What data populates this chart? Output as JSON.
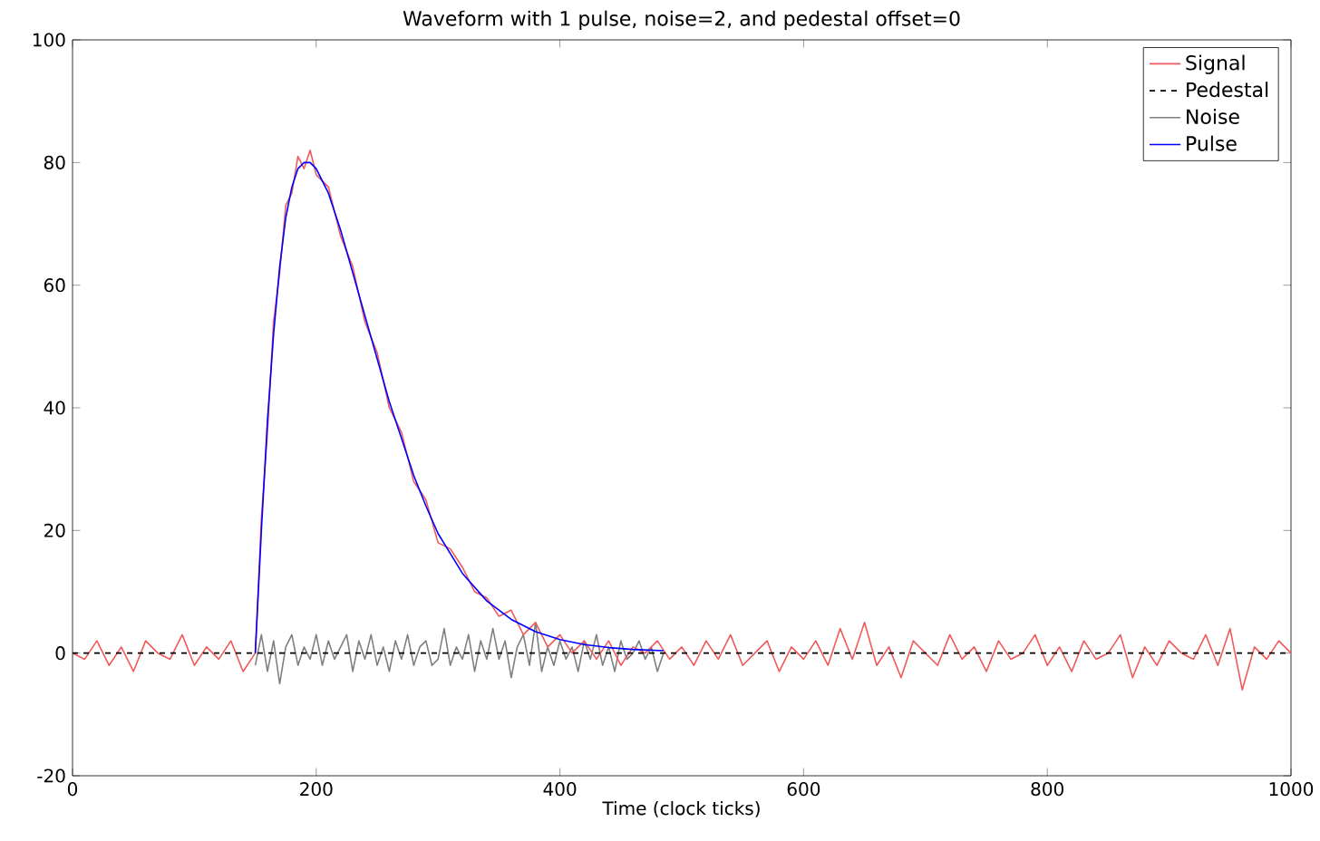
{
  "chart_data": {
    "type": "line",
    "title": "Waveform with 1 pulse, noise=2, and pedestal offset=0",
    "xlabel": "Time (clock ticks)",
    "xlim": [
      0,
      1000
    ],
    "ylim": [
      -20,
      100
    ],
    "xticks": [
      0,
      200,
      400,
      600,
      800,
      1000
    ],
    "yticks": [
      -20,
      0,
      20,
      40,
      60,
      80,
      100
    ],
    "grid": false,
    "legend": "top right",
    "series": [
      {
        "name": "Signal",
        "color": "#f05a5a",
        "line_style": "solid",
        "x": [
          0,
          10,
          20,
          30,
          40,
          50,
          60,
          70,
          80,
          90,
          100,
          110,
          120,
          130,
          140,
          150,
          155,
          160,
          165,
          170,
          175,
          180,
          185,
          190,
          195,
          200,
          210,
          220,
          230,
          240,
          250,
          260,
          270,
          280,
          290,
          300,
          310,
          320,
          330,
          340,
          350,
          360,
          370,
          380,
          390,
          400,
          410,
          420,
          430,
          440,
          450,
          460,
          470,
          480,
          490,
          500,
          510,
          520,
          530,
          540,
          550,
          560,
          570,
          580,
          590,
          600,
          610,
          620,
          630,
          640,
          650,
          660,
          670,
          680,
          690,
          700,
          710,
          720,
          730,
          740,
          750,
          760,
          770,
          780,
          790,
          800,
          810,
          820,
          830,
          840,
          850,
          860,
          870,
          880,
          890,
          900,
          910,
          920,
          930,
          940,
          950,
          960,
          970,
          980,
          990,
          1000
        ],
        "values": [
          0,
          -1,
          2,
          -2,
          1,
          -3,
          2,
          0,
          -1,
          3,
          -2,
          1,
          -1,
          2,
          -3,
          0,
          22,
          36,
          54,
          62,
          73,
          75,
          81,
          79,
          82,
          78,
          76,
          68,
          63,
          54,
          49,
          40,
          36,
          28,
          25,
          18,
          17,
          14,
          10,
          9,
          6,
          7,
          3,
          5,
          1,
          3,
          0,
          2,
          -1,
          2,
          -2,
          1,
          0,
          2,
          -1,
          1,
          -2,
          2,
          -1,
          3,
          -2,
          0,
          2,
          -3,
          1,
          -1,
          2,
          -2,
          4,
          -1,
          5,
          -2,
          1,
          -4,
          2,
          0,
          -2,
          3,
          -1,
          1,
          -3,
          2,
          -1,
          0,
          3,
          -2,
          1,
          -3,
          2,
          -1,
          0,
          3,
          -4,
          1,
          -2,
          2,
          0,
          -1,
          3,
          -2,
          4,
          -6,
          1,
          -1,
          2,
          0
        ]
      },
      {
        "name": "Pedestal",
        "color": "#000000",
        "line_style": "dashed",
        "x": [
          0,
          1000
        ],
        "values": [
          0,
          0
        ]
      },
      {
        "name": "Noise",
        "color": "#808080",
        "line_style": "solid",
        "x": [
          150,
          155,
          160,
          165,
          170,
          175,
          180,
          185,
          190,
          195,
          200,
          205,
          210,
          215,
          220,
          225,
          230,
          235,
          240,
          245,
          250,
          255,
          260,
          265,
          270,
          275,
          280,
          285,
          290,
          295,
          300,
          305,
          310,
          315,
          320,
          325,
          330,
          335,
          340,
          345,
          350,
          355,
          360,
          365,
          370,
          375,
          380,
          385,
          390,
          395,
          400,
          405,
          410,
          415,
          420,
          425,
          430,
          435,
          440,
          445,
          450,
          455,
          460,
          465,
          470,
          475,
          480,
          485
        ],
        "values": [
          -2,
          3,
          -3,
          2,
          -5,
          1,
          3,
          -2,
          1,
          -1,
          3,
          -2,
          2,
          -1,
          1,
          3,
          -3,
          2,
          -1,
          3,
          -2,
          1,
          -3,
          2,
          -1,
          3,
          -2,
          1,
          2,
          -2,
          -1,
          4,
          -2,
          1,
          -1,
          3,
          -3,
          2,
          -1,
          4,
          -1,
          2,
          -4,
          1,
          3,
          -2,
          5,
          -3,
          1,
          -2,
          2,
          -1,
          1,
          -3,
          2,
          -1,
          3,
          -2,
          1,
          -3,
          2,
          -1,
          0,
          2,
          -1,
          1,
          -3,
          0
        ]
      },
      {
        "name": "Pulse",
        "color": "#0000ff",
        "line_style": "solid",
        "x": [
          150,
          155,
          160,
          165,
          170,
          175,
          180,
          185,
          190,
          195,
          200,
          210,
          220,
          230,
          240,
          250,
          260,
          270,
          280,
          290,
          300,
          320,
          340,
          360,
          380,
          400,
          420,
          440,
          460,
          485
        ],
        "values": [
          0,
          20,
          38,
          52,
          63,
          71,
          76,
          79,
          80,
          80,
          79,
          75,
          69,
          62,
          55,
          48,
          41,
          35,
          29,
          24,
          19.5,
          13,
          8.5,
          5.5,
          3.5,
          2.2,
          1.4,
          0.9,
          0.6,
          0.4
        ]
      }
    ]
  }
}
